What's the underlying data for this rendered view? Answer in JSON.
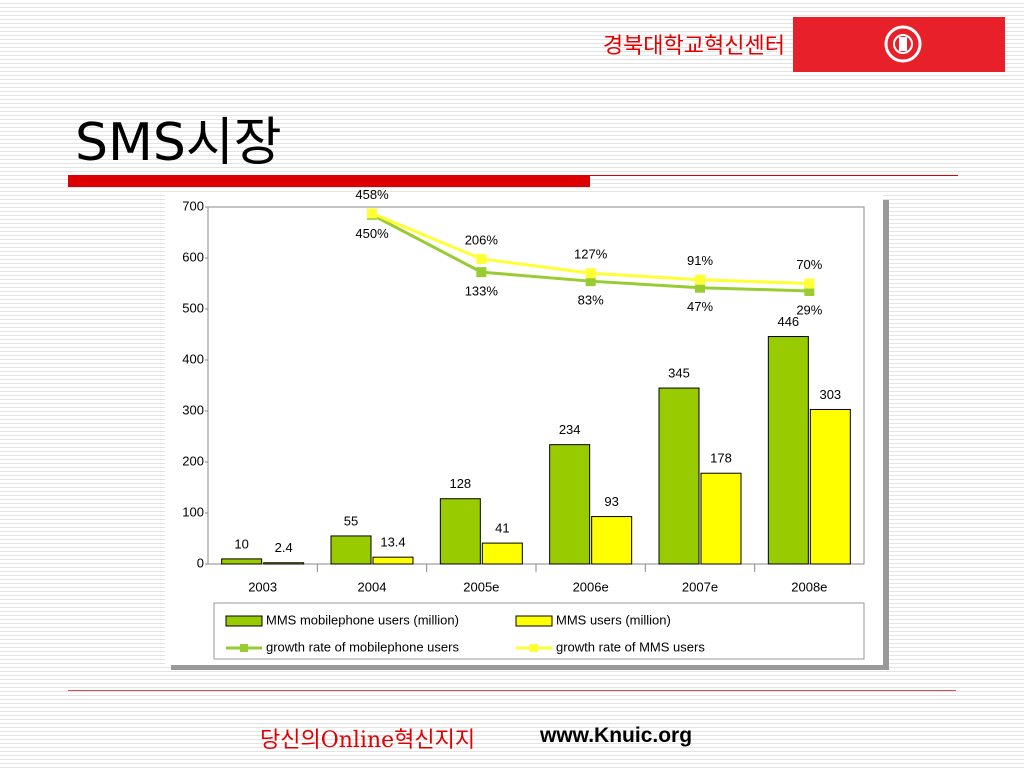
{
  "header": {
    "org": "경북대학교혁신센터"
  },
  "title": "SMS시장",
  "footer": {
    "slogan": "당신의Online혁신지지",
    "url": "www.Knuic.org"
  },
  "chart_data": {
    "type": "bar",
    "categories": [
      "2003",
      "2004",
      "2005e",
      "2006e",
      "2007e",
      "2008e"
    ],
    "ylim": [
      0,
      700
    ],
    "yticks": [
      0,
      100,
      200,
      300,
      400,
      500,
      600,
      700
    ],
    "y2lim": [
      -1480,
      493
    ],
    "series": [
      {
        "name": "MMS mobilephone users (million)",
        "type": "bar",
        "color": "#99cc00",
        "values": [
          10,
          55,
          128,
          234,
          345,
          446
        ]
      },
      {
        "name": "MMS users (million)",
        "type": "bar",
        "color": "#ffff00",
        "values": [
          2.4,
          13.4,
          41,
          93,
          178,
          303
        ]
      },
      {
        "name": "growth rate of mobilephone users",
        "type": "line",
        "axis": "y2",
        "color": "#99cc33",
        "values": [
          null,
          450,
          133,
          83,
          47,
          29
        ],
        "value_labels": [
          null,
          "450%",
          "133%",
          "83%",
          "47%",
          "29%"
        ]
      },
      {
        "name": "growth rate of MMS users",
        "type": "line",
        "axis": "y2",
        "color": "#ffff33",
        "values": [
          null,
          458,
          206,
          127,
          91,
          70
        ],
        "value_labels": [
          null,
          "458%",
          "206%",
          "127%",
          "91%",
          "70%"
        ]
      }
    ]
  }
}
